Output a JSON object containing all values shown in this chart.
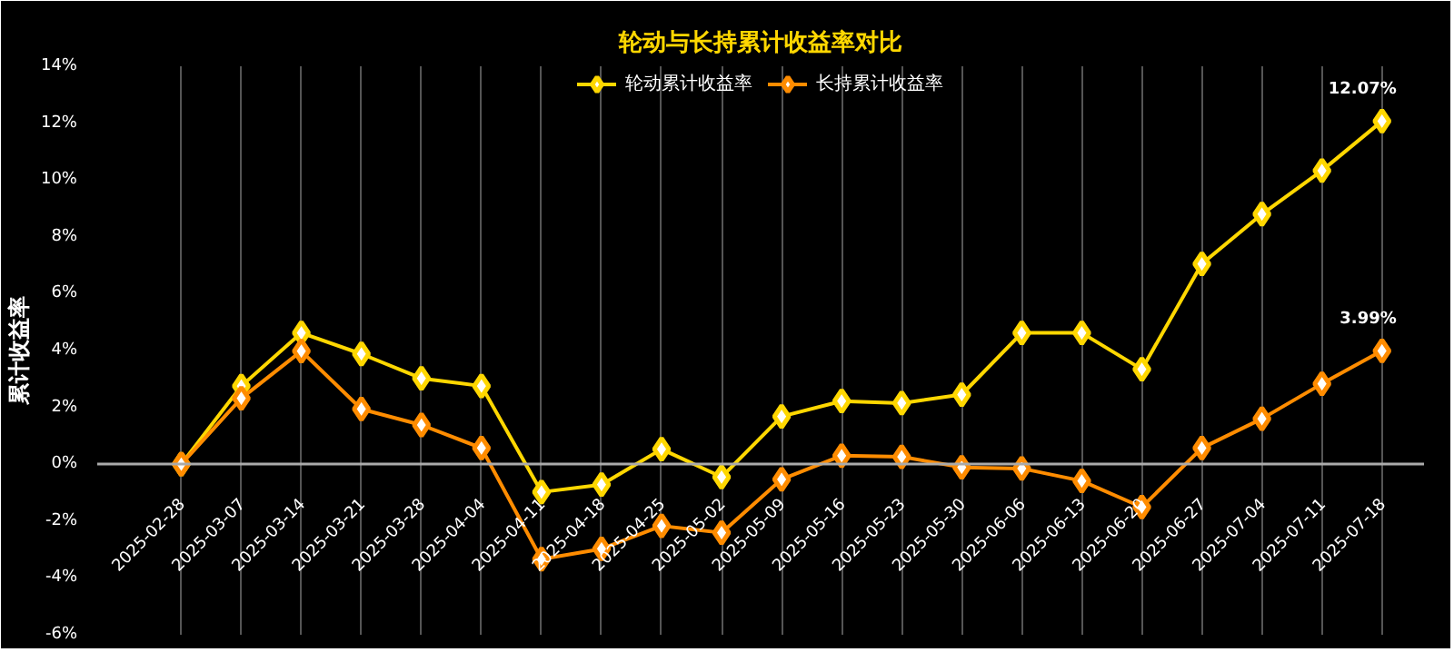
{
  "chart_data": {
    "type": "line",
    "title": "轮动与长持累计收益率对比",
    "ylabel": "累计收益率",
    "categories": [
      "2025-02-28",
      "2025-03-07",
      "2025-03-14",
      "2025-03-21",
      "2025-03-28",
      "2025-04-04",
      "2025-04-11",
      "2025-04-18",
      "2025-04-25",
      "2025-05-02",
      "2025-05-09",
      "2025-05-16",
      "2025-05-23",
      "2025-05-30",
      "2025-06-06",
      "2025-06-13",
      "2025-06-20",
      "2025-06-27",
      "2025-07-04",
      "2025-07-11",
      "2025-07-18"
    ],
    "series": [
      {
        "name": "轮动累计收益率",
        "color": "#ffd700",
        "values": [
          0,
          2.75,
          4.62,
          3.88,
          3.02,
          2.75,
          -0.98,
          -0.72,
          0.53,
          -0.45,
          1.68,
          2.22,
          2.15,
          2.45,
          4.62,
          4.62,
          3.34,
          7.05,
          8.8,
          10.33,
          12.07
        ],
        "value_labels": [
          null,
          null,
          null,
          null,
          null,
          null,
          null,
          null,
          null,
          null,
          null,
          null,
          null,
          null,
          null,
          null,
          null,
          null,
          null,
          null,
          "12.07%"
        ]
      },
      {
        "name": "长持累计收益率",
        "color": "#ff8c00",
        "values": [
          0,
          2.32,
          3.98,
          1.94,
          1.38,
          0.57,
          -3.34,
          -2.98,
          -2.17,
          -2.41,
          -0.53,
          0.3,
          0.26,
          -0.11,
          -0.15,
          -0.59,
          -1.51,
          0.57,
          1.6,
          2.83,
          3.99
        ],
        "value_labels": [
          null,
          null,
          null,
          null,
          null,
          null,
          null,
          null,
          null,
          null,
          null,
          null,
          null,
          null,
          null,
          null,
          null,
          null,
          null,
          null,
          "3.99%"
        ]
      }
    ],
    "ylim": [
      -6,
      14
    ],
    "yticks": [
      {
        "value": -6,
        "label": "-6%"
      },
      {
        "value": -4,
        "label": "-4%"
      },
      {
        "value": -2,
        "label": "-2%"
      },
      {
        "value": 0,
        "label": "0%"
      },
      {
        "value": 2,
        "label": "2%"
      },
      {
        "value": 4,
        "label": "4%"
      },
      {
        "value": 6,
        "label": "6%"
      },
      {
        "value": 8,
        "label": "8%"
      },
      {
        "value": 10,
        "label": "10%"
      },
      {
        "value": 12,
        "label": "12%"
      },
      {
        "value": 14,
        "label": "14%"
      }
    ],
    "grid": "x",
    "legend": "top",
    "marker": "diamond",
    "line_style": "solid"
  }
}
